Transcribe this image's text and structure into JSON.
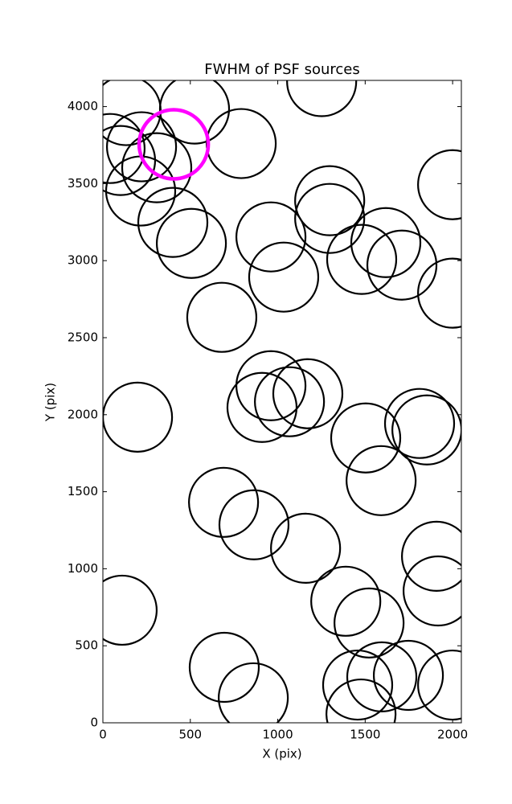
{
  "chart_data": {
    "type": "scatter",
    "title": "FWHM of PSF sources",
    "x_label": "X (pix)",
    "y_label": "Y (pix)",
    "xlim": [
      0,
      2050
    ],
    "ylim": [
      0,
      4170
    ],
    "xticks": [
      0,
      500,
      1000,
      1500,
      2000
    ],
    "yticks": [
      0,
      500,
      1000,
      1500,
      2000,
      2500,
      3000,
      3500,
      4000
    ],
    "grid": false,
    "series": [
      {
        "color": "#000000",
        "line_width": 2.2,
        "x": [
          133,
          524,
          1251,
          41,
          101,
          221,
          308,
          216,
          400,
          506,
          791,
          1297,
          1297,
          961,
          1034,
          1480,
          1618,
          1710,
          2000,
          2000,
          680,
          198,
          961,
          910,
          1067,
          1172,
          1503,
          1811,
          1853,
          1591,
          690,
          864,
          1159,
          1908,
          1917,
          1389,
          1522,
          110,
          694,
          860,
          1457,
          1476,
          1595,
          1747,
          2000
        ],
        "values": [
          3974,
          3984,
          4162,
          3728,
          3650,
          3739,
          3603,
          3452,
          3248,
          3112,
          3760,
          3389,
          3274,
          3154,
          2893,
          3008,
          3117,
          2971,
          3493,
          2789,
          2632,
          1984,
          2188,
          2047,
          2084,
          2136,
          1849,
          1943,
          1901,
          1572,
          1431,
          1285,
          1133,
          1081,
          856,
          789,
          648,
          731,
          360,
          162,
          245,
          57,
          298,
          308,
          245
        ]
      },
      {
        "color": "#ff00ff",
        "line_width": 4.5,
        "x": [
          405
        ],
        "values": [
          3755
        ]
      }
    ]
  }
}
